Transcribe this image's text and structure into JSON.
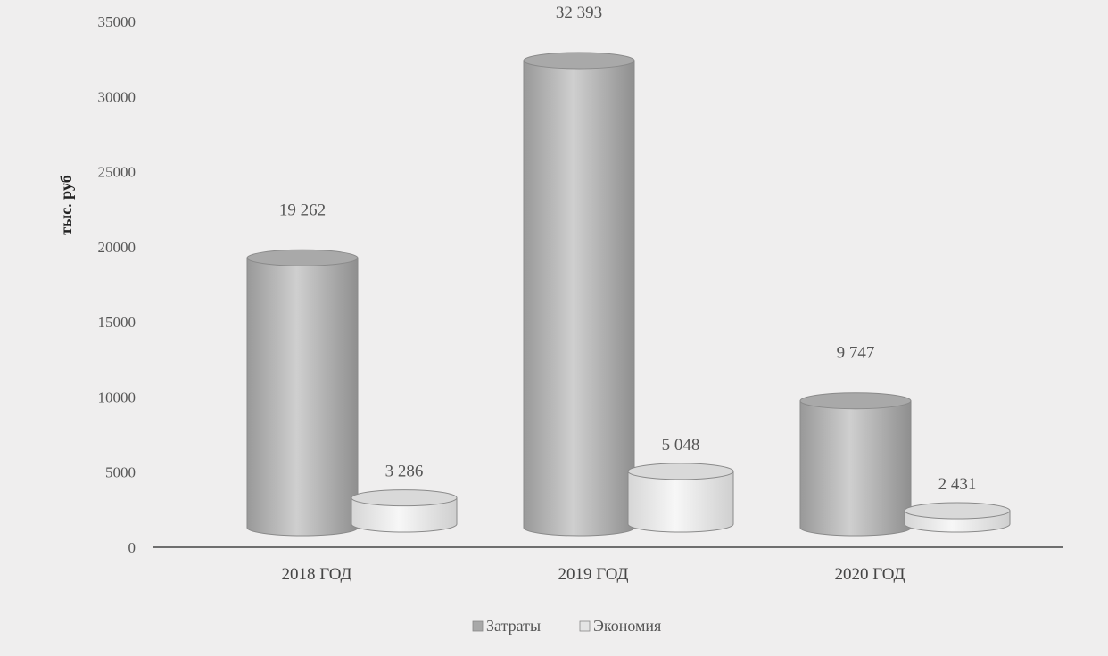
{
  "chart_data": {
    "type": "bar",
    "style": "3d-cylinder",
    "title": "",
    "xlabel": "",
    "ylabel": "тыс. руб",
    "ylim": [
      0,
      35000
    ],
    "yticks": [
      0,
      5000,
      10000,
      15000,
      20000,
      25000,
      30000,
      35000
    ],
    "categories": [
      "2018 ГОД",
      "2019 ГОД",
      "2020 ГОД"
    ],
    "series": [
      {
        "name": "Затраты",
        "values": [
          19262,
          32393,
          9747
        ],
        "labels": [
          "19 262",
          "32 393",
          "9 747"
        ],
        "color": "#b3b3b3"
      },
      {
        "name": "Экономия",
        "values": [
          3286,
          5048,
          2431
        ],
        "labels": [
          "3 286",
          "5 048",
          "2 431"
        ],
        "color": "#e2e2e2"
      }
    ],
    "legend_position": "bottom",
    "grid": false
  }
}
